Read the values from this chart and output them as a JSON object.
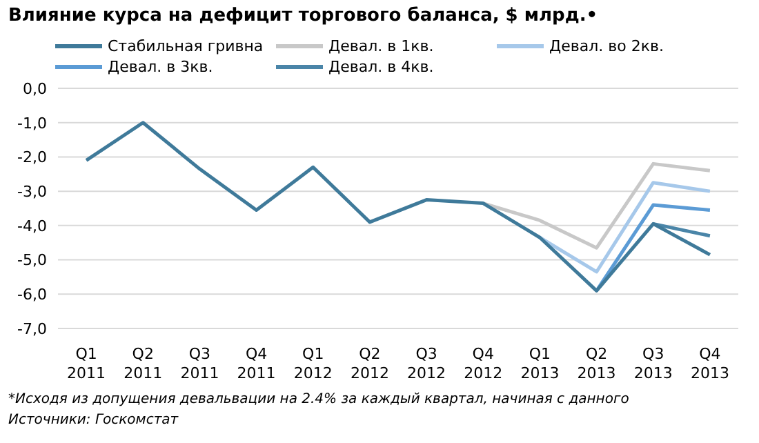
{
  "chart_data": {
    "type": "line",
    "title": "Влияние курса на дефицит торгового баланса, $ млрд.•",
    "categories": [
      "Q1\n2011",
      "Q2\n2011",
      "Q3\n2011",
      "Q4\n2011",
      "Q1\n2012",
      "Q2\n2012",
      "Q3\n2012",
      "Q4\n2012",
      "Q1\n2013",
      "Q2\n2013",
      "Q3\n2013",
      "Q4\n2013"
    ],
    "series": [
      {
        "name": "Стабильная гривна",
        "color": "#3f7a9a",
        "values": [
          -2.1,
          -1.0,
          -2.35,
          -3.55,
          -2.3,
          -3.9,
          -3.25,
          -3.35,
          -4.35,
          -5.9,
          -3.95,
          -4.85
        ]
      },
      {
        "name": "Девал. в 1кв.",
        "color": "#c8c8c8",
        "values": [
          null,
          null,
          null,
          null,
          null,
          null,
          null,
          -3.35,
          -3.85,
          -4.65,
          -2.2,
          -2.4
        ]
      },
      {
        "name": "Девал. во 2кв.",
        "color": "#a6c8ea",
        "values": [
          null,
          null,
          null,
          null,
          null,
          null,
          null,
          null,
          -4.35,
          -5.35,
          -2.75,
          -3.0
        ]
      },
      {
        "name": "Девал. в 3кв.",
        "color": "#5b9bd5",
        "values": [
          null,
          null,
          null,
          null,
          null,
          null,
          null,
          null,
          null,
          -5.9,
          -3.4,
          -3.55
        ]
      },
      {
        "name": "Девал. в 4кв.",
        "color": "#4a85a8",
        "values": [
          null,
          null,
          null,
          null,
          null,
          null,
          null,
          null,
          null,
          null,
          -3.95,
          -4.3
        ]
      }
    ],
    "ylim": [
      -7,
      0
    ],
    "yticks": [
      {
        "value": 0,
        "label": "0,0"
      },
      {
        "value": -1,
        "label": "-1,0"
      },
      {
        "value": -2,
        "label": "-2,0"
      },
      {
        "value": -3,
        "label": "-3,0"
      },
      {
        "value": -4,
        "label": "-4,0"
      },
      {
        "value": -5,
        "label": "-5,0"
      },
      {
        "value": -6,
        "label": "-6,0"
      },
      {
        "value": -7,
        "label": "-7,0"
      }
    ],
    "grid": "y",
    "legend": "top",
    "marker": "none",
    "line_style": "solid",
    "annotations": [
      "*Исходя из допущения девальвации на 2.4% за каждый квартал, начиная с данного",
      "Источники: Госкомстат"
    ]
  }
}
